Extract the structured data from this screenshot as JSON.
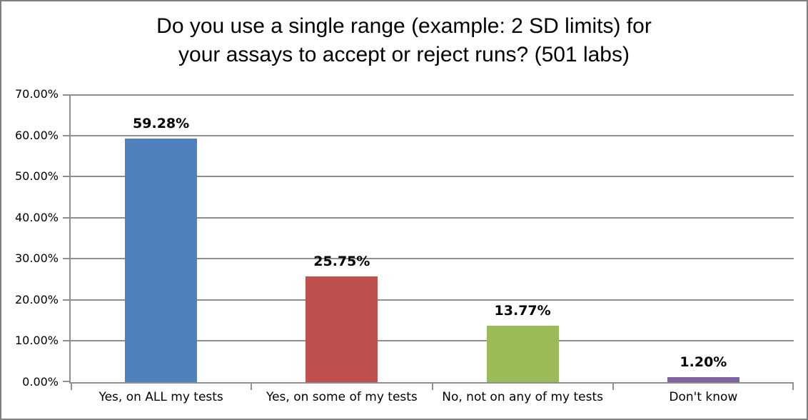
{
  "chart": {
    "title": {
      "line1": "Do you use a single range (example: 2 SD limits) for",
      "line2": "your assays to accept or reject runs? (501 labs)"
    }
  },
  "chart_data": {
    "type": "bar",
    "title": "Do you use a single range (example: 2 SD limits) for your assays to accept or reject runs? (501 labs)",
    "categories": [
      "Yes, on ALL my tests",
      "Yes, on some of my tests",
      "No, not on any of my tests",
      "Don't know"
    ],
    "values": [
      59.28,
      25.75,
      13.77,
      1.2
    ],
    "value_labels": [
      "59.28%",
      "25.75%",
      "13.77%",
      "1.20%"
    ],
    "bar_colors": [
      "#4F81BD",
      "#C0504D",
      "#9BBB59",
      "#8064A2"
    ],
    "xlabel": "",
    "ylabel": "",
    "ylim": [
      0,
      70
    ],
    "ytick_values": [
      0,
      10,
      20,
      30,
      40,
      50,
      60,
      70
    ],
    "ytick_labels": [
      "0.00%",
      "10.00%",
      "20.00%",
      "30.00%",
      "40.00%",
      "50.00%",
      "60.00%",
      "70.00%"
    ],
    "grid": true,
    "legend_position": "none",
    "colors": {
      "axis": "#8f8f8f",
      "gridline": "#8f8f8f",
      "chart_border": "#7f7f7f",
      "text": "#000000",
      "background": "#ffffff"
    }
  }
}
